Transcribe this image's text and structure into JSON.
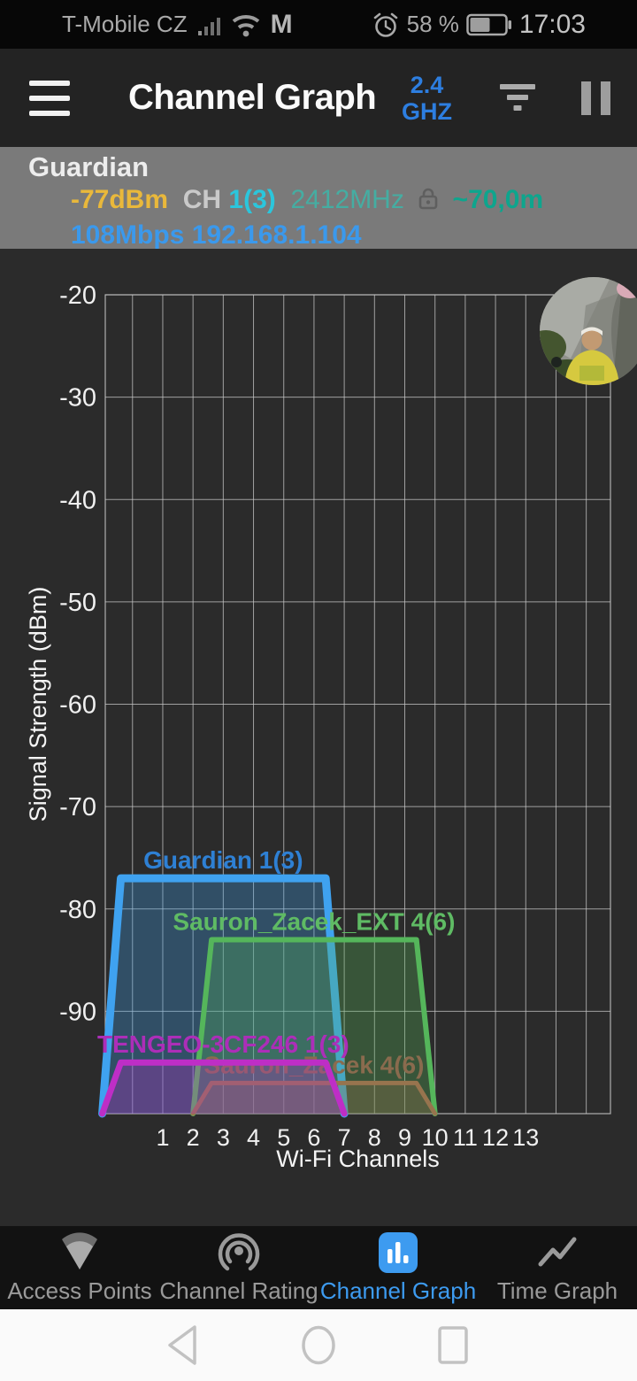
{
  "status_bar": {
    "carrier": "T-Mobile CZ",
    "gmail_badge": "M",
    "battery_percent": "58 %",
    "time": "17:03"
  },
  "header": {
    "title": "Channel Graph",
    "band_top": "2.4",
    "band_bottom": "GHZ"
  },
  "info_bar": {
    "ssid": "Guardian",
    "signal": "-77dBm",
    "ch_label": "CH",
    "channel": "1(3)",
    "frequency": "2412MHz",
    "distance": "~70,0m",
    "link_speed": "108Mbps",
    "ip_address": "192.168.1.104"
  },
  "chart_data": {
    "type": "area",
    "xlabel": "Wi-Fi Channels",
    "ylabel": "Signal Strength (dBm)",
    "x_ticks": [
      1,
      2,
      3,
      4,
      5,
      6,
      7,
      8,
      9,
      10,
      11,
      12,
      13
    ],
    "y_ticks": [
      -20,
      -30,
      -40,
      -50,
      -60,
      -70,
      -80,
      -90
    ],
    "ylim": [
      -100,
      -20
    ],
    "xlim_channels": [
      -0.9,
      15.8
    ],
    "grid": true,
    "series": [
      {
        "name": "Guardian",
        "label": "Guardian 1(3)",
        "center_channel": 3,
        "span_channels": 8,
        "signal_dbm": -77,
        "color": "#3fa2f0",
        "label_color": "#2e80d4",
        "stroke_width": 9
      },
      {
        "name": "Sauron_Zacek_EXT",
        "label": "Sauron_Zacek_EXT 4(6)",
        "center_channel": 6,
        "span_channels": 8,
        "signal_dbm": -83,
        "color": "#55b65b",
        "label_color": "#5fbb64",
        "stroke_width": 6
      },
      {
        "name": "Sauron_Zacek",
        "label": "Sauron_Zacek 4(6)",
        "center_channel": 6,
        "span_channels": 8,
        "signal_dbm": -97,
        "color": "#97744e",
        "label_color": "#8a6b4e",
        "stroke_width": 5
      },
      {
        "name": "TENGEO-3CF246",
        "label": "TENGEO-3CF246 1(3)",
        "center_channel": 3,
        "span_channels": 8,
        "signal_dbm": -95,
        "color": "#be2ec6",
        "label_color": "#ac2eb8",
        "stroke_width": 7
      }
    ]
  },
  "avatar": {
    "description": "profile photo overlay"
  },
  "bottom_nav": {
    "tabs": [
      {
        "label": "Access Points",
        "icon": "wifi-fan-icon",
        "active": false
      },
      {
        "label": "Channel Rating",
        "icon": "beacon-icon",
        "active": false
      },
      {
        "label": "Channel Graph",
        "icon": "bar-chart-icon",
        "active": true
      },
      {
        "label": "Time Graph",
        "icon": "trend-line-icon",
        "active": false
      }
    ]
  },
  "android_nav": {
    "icons": [
      "back-icon",
      "home-icon",
      "recents-icon"
    ]
  },
  "colors": {
    "accent_blue": "#3d9bf0",
    "chart_bg": "#2b2b2b",
    "grid_line": "#c7c7c7",
    "info_bar_bg": "#7a7a7a"
  }
}
